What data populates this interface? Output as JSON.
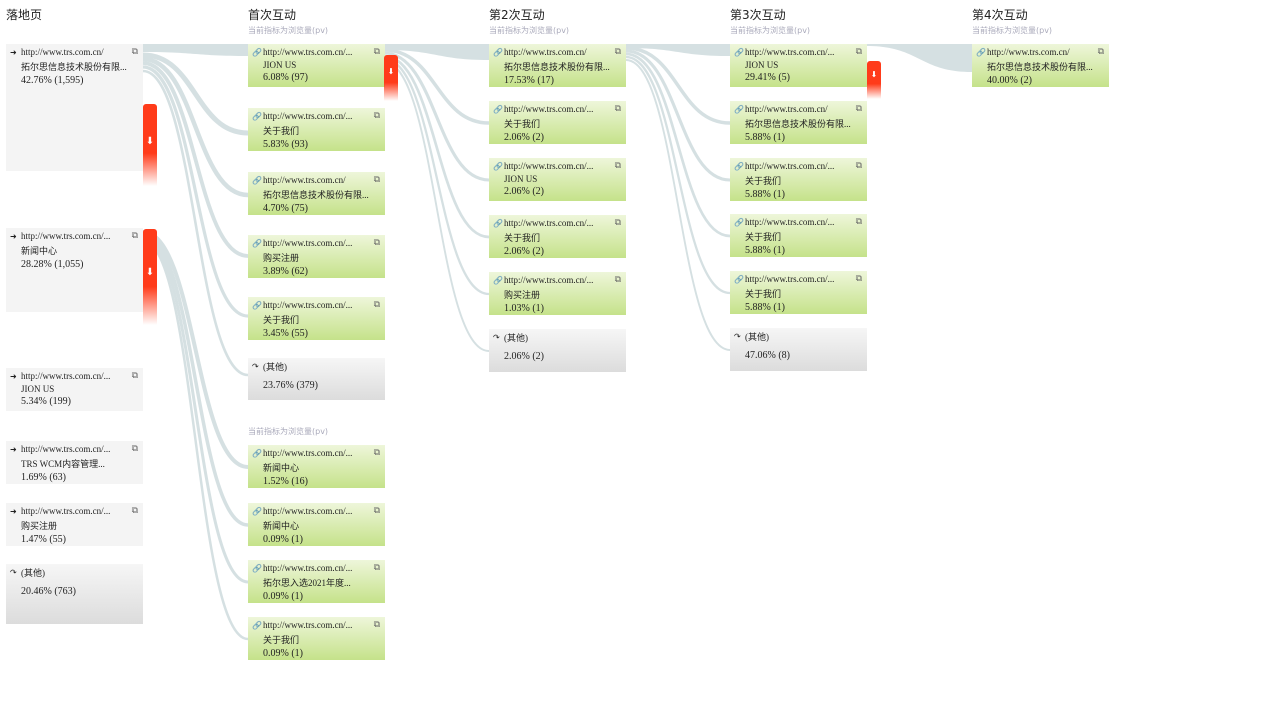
{
  "columns": [
    {
      "title": "落地页",
      "metric": ""
    },
    {
      "title": "首次互动",
      "metric": "当前指标为浏览量(pv)",
      "metric2": "当前指标为浏览量(pv)"
    },
    {
      "title": "第2次互动",
      "metric": "当前指标为浏览量(pv)"
    },
    {
      "title": "第3次互动",
      "metric": "当前指标为浏览量(pv)"
    },
    {
      "title": "第4次互动",
      "metric": "当前指标为浏览量(pv)"
    }
  ],
  "nodes": {
    "landing": [
      {
        "url": "http://www.trs.com.cn/",
        "name": "拓尔思信息技术股份有限...",
        "value": "42.76% (1,595)"
      },
      {
        "url": "http://www.trs.com.cn/...",
        "name": "新闻中心",
        "value": "28.28% (1,055)"
      },
      {
        "url": "http://www.trs.com.cn/...",
        "name": "JION US",
        "value": "5.34% (199)"
      },
      {
        "url": "http://www.trs.com.cn/...",
        "name": "TRS WCM内容管理...",
        "value": "1.69% (63)"
      },
      {
        "url": "http://www.trs.com.cn/...",
        "name": "购买注册",
        "value": "1.47% (55)"
      },
      {
        "url": "(其他)",
        "name": "",
        "value": "20.46% (763)",
        "other": true
      }
    ],
    "first": [
      {
        "url": "http://www.trs.com.cn/...",
        "name": "JION US",
        "value": "6.08% (97)"
      },
      {
        "url": "http://www.trs.com.cn/...",
        "name": "关于我们",
        "value": "5.83% (93)"
      },
      {
        "url": "http://www.trs.com.cn/",
        "name": "拓尔思信息技术股份有限...",
        "value": "4.70% (75)"
      },
      {
        "url": "http://www.trs.com.cn/...",
        "name": "购买注册",
        "value": "3.89% (62)"
      },
      {
        "url": "http://www.trs.com.cn/...",
        "name": "关于我们",
        "value": "3.45% (55)"
      },
      {
        "url": "(其他)",
        "name": "",
        "value": "23.76% (379)",
        "other": true
      },
      {
        "url": "http://www.trs.com.cn/...",
        "name": "新闻中心",
        "value": "1.52% (16)"
      },
      {
        "url": "http://www.trs.com.cn/...",
        "name": "新闻中心",
        "value": "0.09% (1)"
      },
      {
        "url": "http://www.trs.com.cn/...",
        "name": "拓尔思入选2021年度...",
        "value": "0.09% (1)"
      },
      {
        "url": "http://www.trs.com.cn/...",
        "name": "关于我们",
        "value": "0.09% (1)"
      }
    ],
    "second": [
      {
        "url": "http://www.trs.com.cn/",
        "name": "拓尔思信息技术股份有限...",
        "value": "17.53% (17)"
      },
      {
        "url": "http://www.trs.com.cn/...",
        "name": "关于我们",
        "value": "2.06% (2)"
      },
      {
        "url": "http://www.trs.com.cn/...",
        "name": "JION US",
        "value": "2.06% (2)"
      },
      {
        "url": "http://www.trs.com.cn/...",
        "name": "关于我们",
        "value": "2.06% (2)"
      },
      {
        "url": "http://www.trs.com.cn/...",
        "name": "购买注册",
        "value": "1.03% (1)"
      },
      {
        "url": "(其他)",
        "name": "",
        "value": "2.06% (2)",
        "other": true
      }
    ],
    "third": [
      {
        "url": "http://www.trs.com.cn/...",
        "name": "JION US",
        "value": "29.41% (5)"
      },
      {
        "url": "http://www.trs.com.cn/",
        "name": "拓尔思信息技术股份有限...",
        "value": "5.88% (1)"
      },
      {
        "url": "http://www.trs.com.cn/...",
        "name": "关于我们",
        "value": "5.88% (1)"
      },
      {
        "url": "http://www.trs.com.cn/...",
        "name": "关于我们",
        "value": "5.88% (1)"
      },
      {
        "url": "http://www.trs.com.cn/...",
        "name": "关于我们",
        "value": "5.88% (1)"
      },
      {
        "url": "(其他)",
        "name": "",
        "value": "47.06% (8)",
        "other": true
      }
    ],
    "fourth": [
      {
        "url": "http://www.trs.com.cn/",
        "name": "拓尔思信息技术股份有限...",
        "value": "40.00% (2)"
      }
    ]
  },
  "icons": {
    "landing": "entrance-icon",
    "page": "link-icon",
    "other": "redirect-icon",
    "external": "external-link-icon",
    "drop": "dropoff-arrow-icon"
  },
  "colors": {
    "node_green": "#c5e28a",
    "flow": "#d5e0e2",
    "dropoff": "#ff3b1a"
  }
}
